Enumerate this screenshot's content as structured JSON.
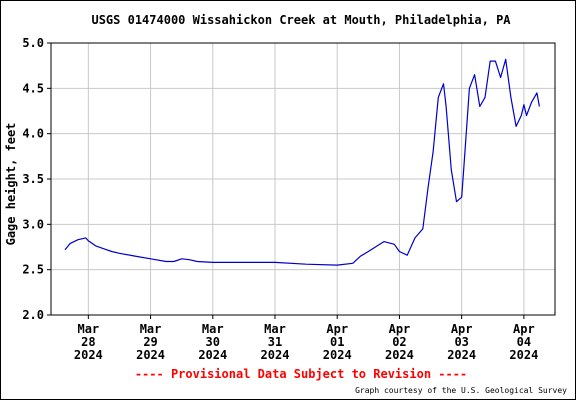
{
  "chart_data": {
    "type": "line",
    "title": "USGS 01474000 Wissahickon Creek at Mouth, Philadelphia, PA",
    "ylabel": "Gage height, feet",
    "xlabel": "",
    "ylim": [
      2.0,
      5.0
    ],
    "xlim": [
      -0.6,
      7.5
    ],
    "y_ticks": [
      "2.0",
      "2.5",
      "3.0",
      "3.5",
      "4.0",
      "4.5",
      "5.0"
    ],
    "x_ticks": [
      {
        "month": "Mar",
        "day": "28",
        "year": "2024"
      },
      {
        "month": "Mar",
        "day": "29",
        "year": "2024"
      },
      {
        "month": "Mar",
        "day": "30",
        "year": "2024"
      },
      {
        "month": "Mar",
        "day": "31",
        "year": "2024"
      },
      {
        "month": "Apr",
        "day": "01",
        "year": "2024"
      },
      {
        "month": "Apr",
        "day": "02",
        "year": "2024"
      },
      {
        "month": "Apr",
        "day": "03",
        "year": "2024"
      },
      {
        "month": "Apr",
        "day": "04",
        "year": "2024"
      }
    ],
    "grid": true,
    "line_color": "#0000cc",
    "series": [
      {
        "x": [
          "2024-03-27 15:00",
          "2024-03-27 17:00",
          "2024-03-27 20:00",
          "2024-03-27 23:00",
          "2024-03-28 00:00",
          "2024-03-28 03:00",
          "2024-03-28 06:00",
          "2024-03-28 09:00",
          "2024-03-28 12:00",
          "2024-03-28 18:00",
          "2024-03-29 00:00",
          "2024-03-29 06:00",
          "2024-03-29 09:00",
          "2024-03-29 12:00",
          "2024-03-29 15:00",
          "2024-03-29 18:00",
          "2024-03-30 00:00",
          "2024-03-30 12:00",
          "2024-03-31 00:00",
          "2024-03-31 12:00",
          "2024-04-01 00:00",
          "2024-04-01 06:00",
          "2024-04-01 09:00",
          "2024-04-01 12:00",
          "2024-04-01 18:00",
          "2024-04-01 22:00",
          "2024-04-02 00:00",
          "2024-04-02 03:00",
          "2024-04-02 06:00",
          "2024-04-02 09:00",
          "2024-04-02 11:00",
          "2024-04-02 13:00",
          "2024-04-02 15:00",
          "2024-04-02 17:00",
          "2024-04-02 18:00",
          "2024-04-02 20:00",
          "2024-04-02 22:00",
          "2024-04-03 00:00",
          "2024-04-03 01:00",
          "2024-04-03 03:00",
          "2024-04-03 05:00",
          "2024-04-03 07:00",
          "2024-04-03 09:00",
          "2024-04-03 11:00",
          "2024-04-03 13:00",
          "2024-04-03 15:00",
          "2024-04-03 17:00",
          "2024-04-03 19:00",
          "2024-04-03 21:00",
          "2024-04-03 23:00",
          "2024-04-04 00:00",
          "2024-04-04 01:00",
          "2024-04-04 03:00",
          "2024-04-04 05:00",
          "2024-04-04 06:00"
        ],
        "y": [
          2.72,
          2.79,
          2.83,
          2.85,
          2.82,
          2.76,
          2.73,
          2.7,
          2.68,
          2.65,
          2.62,
          2.59,
          2.59,
          2.62,
          2.61,
          2.59,
          2.58,
          2.58,
          2.58,
          2.56,
          2.55,
          2.57,
          2.65,
          2.7,
          2.81,
          2.78,
          2.7,
          2.66,
          2.85,
          2.95,
          3.4,
          3.8,
          4.4,
          4.55,
          4.3,
          3.6,
          3.25,
          3.3,
          3.7,
          4.5,
          4.65,
          4.3,
          4.4,
          4.8,
          4.8,
          4.62,
          4.82,
          4.4,
          4.08,
          4.2,
          4.32,
          4.2,
          4.35,
          4.45,
          4.3
        ]
      }
    ]
  },
  "footer": {
    "provisional": "---- Provisional Data Subject to Revision ----",
    "provisional_color": "#ff0000",
    "credit": "Graph courtesy of the U.S. Geological Survey"
  }
}
